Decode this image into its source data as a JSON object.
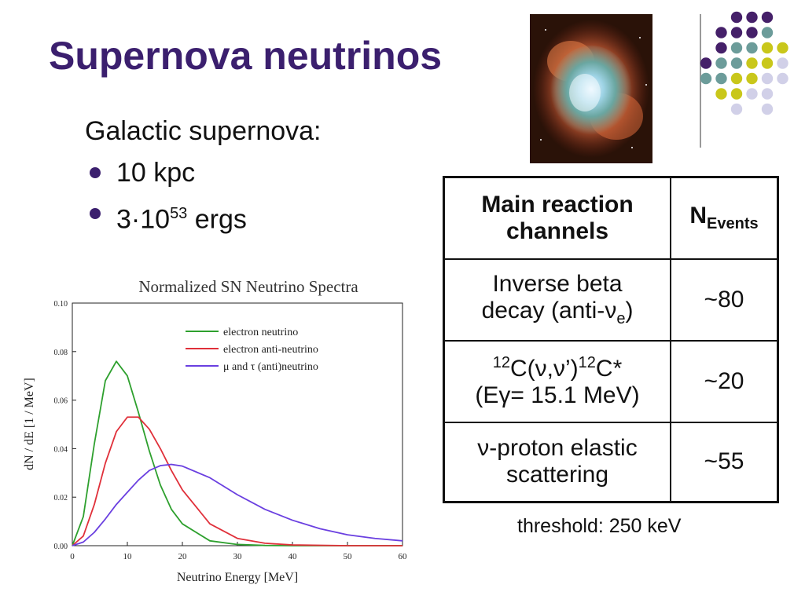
{
  "slide": {
    "title": "Supernova neutrinos",
    "subtitle": "Galactic supernova:",
    "bullets": {
      "b1": "10 kpc",
      "b2_base": "3·10",
      "b2_exp": "53",
      "b2_tail": " ergs"
    },
    "threshold": "threshold: 250 keV",
    "colors": {
      "title": "#3b1f6e",
      "dots_purple": "#452069",
      "dots_teal": "#6c9c9a",
      "dots_yellow": "#c9c71b",
      "dots_lavender": "#d1d0e8"
    }
  },
  "table": {
    "header": {
      "col1_line1": "Main reaction",
      "col1_line2": "channels",
      "col2_base": "N",
      "col2_sub": "Events"
    },
    "rows": [
      {
        "line1": "Inverse beta",
        "line2_pre": "decay (anti-",
        "line2_sym": "ν",
        "line2_sub": "e",
        "line2_post": ")",
        "events": "~80"
      },
      {
        "sup1": "12",
        "mid": "C(ν,ν’)",
        "sup2": "12",
        "post": "C*",
        "line2": "(Eγ= 15.1 MeV)",
        "events": "~20"
      },
      {
        "line1": "ν-proton elastic",
        "line2": "scattering",
        "events": "~55"
      }
    ]
  },
  "chart_data": {
    "type": "line",
    "title": "Normalized SN Neutrino Spectra",
    "xlabel": "Neutrino Energy [MeV]",
    "ylabel": "dN / dE [1 / MeV]",
    "xlim": [
      0,
      60
    ],
    "ylim": [
      0,
      0.1
    ],
    "xticks": [
      "0",
      "10",
      "20",
      "30",
      "40",
      "50",
      "60"
    ],
    "yticks": [
      "0.00",
      "0.02",
      "0.04",
      "0.06",
      "0.08",
      "0.10"
    ],
    "legend_position": "top-right",
    "series": [
      {
        "name": "electron neutrino",
        "color": "#2ea02e",
        "x": [
          0,
          2,
          4,
          6,
          8,
          10,
          12,
          14,
          16,
          18,
          20,
          25,
          30,
          35,
          40,
          50,
          60
        ],
        "y": [
          0,
          0.012,
          0.042,
          0.068,
          0.076,
          0.07,
          0.055,
          0.039,
          0.025,
          0.015,
          0.009,
          0.002,
          0.0005,
          0.0001,
          0,
          0,
          0
        ]
      },
      {
        "name": "electron anti-neutrino",
        "color": "#e0303a",
        "x": [
          0,
          2,
          4,
          6,
          8,
          10,
          12,
          14,
          16,
          18,
          20,
          25,
          30,
          35,
          40,
          50,
          60
        ],
        "y": [
          0,
          0.004,
          0.017,
          0.034,
          0.047,
          0.053,
          0.053,
          0.048,
          0.04,
          0.031,
          0.023,
          0.009,
          0.003,
          0.001,
          0.0003,
          0,
          0
        ]
      },
      {
        "name": "μ and τ (anti)neutrino",
        "color": "#6a3fe0",
        "x": [
          0,
          2,
          4,
          6,
          8,
          10,
          12,
          14,
          16,
          18,
          20,
          25,
          30,
          35,
          40,
          45,
          50,
          55,
          60
        ],
        "y": [
          0,
          0.0015,
          0.0055,
          0.011,
          0.017,
          0.022,
          0.027,
          0.031,
          0.033,
          0.0335,
          0.0328,
          0.028,
          0.021,
          0.015,
          0.0105,
          0.007,
          0.0045,
          0.003,
          0.002
        ]
      }
    ]
  }
}
